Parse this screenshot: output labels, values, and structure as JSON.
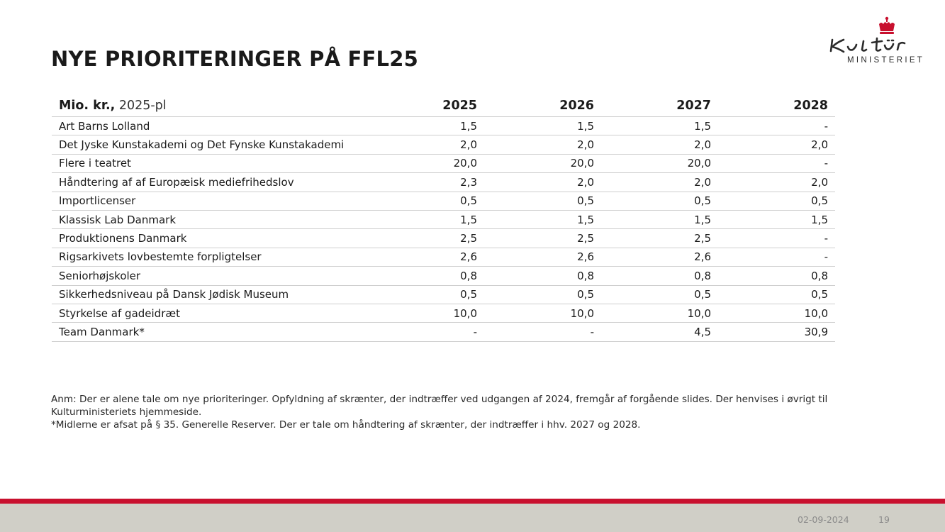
{
  "slide": {
    "title": "NYE PRIORITERINGER PÅ FFL25"
  },
  "logo": {
    "subtitle": "MINISTERIET",
    "accent_color": "#c8102e",
    "icon": "crown-icon"
  },
  "table": {
    "header": {
      "label_bold": "Mio. kr.,",
      "label_unit": " 2025-pl",
      "years": [
        "2025",
        "2026",
        "2027",
        "2028"
      ]
    },
    "rows": [
      {
        "label": "Art Barns Lolland",
        "values": [
          "1,5",
          "1,5",
          "1,5",
          "-"
        ]
      },
      {
        "label": "Det Jyske Kunstakademi og Det Fynske Kunstakademi",
        "values": [
          "2,0",
          "2,0",
          "2,0",
          "2,0"
        ]
      },
      {
        "label": "Flere i teatret",
        "values": [
          "20,0",
          "20,0",
          "20,0",
          "-"
        ]
      },
      {
        "label": "Håndtering af af Europæisk mediefrihedslov",
        "values": [
          "2,3",
          "2,0",
          "2,0",
          "2,0"
        ]
      },
      {
        "label": "Importlicenser",
        "values": [
          "0,5",
          "0,5",
          "0,5",
          "0,5"
        ]
      },
      {
        "label": "Klassisk Lab Danmark",
        "values": [
          "1,5",
          "1,5",
          "1,5",
          "1,5"
        ]
      },
      {
        "label": "Produktionens Danmark",
        "values": [
          "2,5",
          "2,5",
          "2,5",
          "-"
        ]
      },
      {
        "label": "Rigsarkivets lovbestemte forpligtelser",
        "values": [
          "2,6",
          "2,6",
          "2,6",
          "-"
        ]
      },
      {
        "label": "Seniorhøjskoler",
        "values": [
          "0,8",
          "0,8",
          "0,8",
          "0,8"
        ]
      },
      {
        "label": "Sikkerhedsniveau på Dansk Jødisk Museum",
        "values": [
          "0,5",
          "0,5",
          "0,5",
          "0,5"
        ]
      },
      {
        "label": "Styrkelse af gadeidræt",
        "values": [
          "10,0",
          "10,0",
          "10,0",
          "10,0"
        ]
      },
      {
        "label": "Team Danmark*",
        "values": [
          "-",
          "-",
          "4,5",
          "30,9"
        ]
      }
    ]
  },
  "notes": {
    "line1": "Anm: Der er alene tale om nye prioriteringer. Opfyldning af skrænter, der indtræffer ved udgangen af 2024, fremgår af forgående slides. Der henvises i øvrigt til Kulturministeriets hjemmeside.",
    "line2": "*Midlerne er afsat på § 35. Generelle Reserver. Der er tale om håndtering af skrænter, der indtræffer i hhv. 2027 og 2028."
  },
  "footer": {
    "date": "02-09-2024",
    "page": "19",
    "red_color": "#c8102e",
    "grey_color": "#d0cfc7"
  }
}
